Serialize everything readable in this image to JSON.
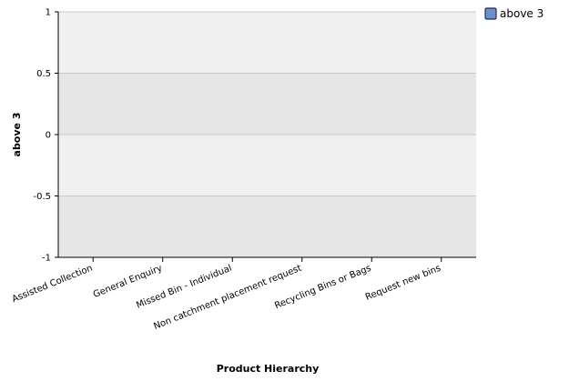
{
  "chart_data": {
    "type": "bar",
    "title": "",
    "xlabel": "Product Hierarchy",
    "ylabel": "above 3",
    "categories": [
      "Assisted Collection",
      "General Enquiry",
      "Missed Bin - Individual",
      "Non catchment placement request",
      "Recycling Bins or Bags",
      "Request new bins"
    ],
    "series": [
      {
        "name": "above 3",
        "values": [
          0,
          0,
          0,
          0,
          0,
          0
        ],
        "color": "#6f8fc9"
      }
    ],
    "ylim": [
      -1,
      1
    ],
    "yticks": [
      "1",
      "0.5",
      "0",
      "-0.5",
      "-1"
    ],
    "grid": true,
    "legend_position": "top-right",
    "colors": {
      "band_light": "#f0f0f0",
      "band_dark": "#e6e6e6",
      "gridline": "#c8c8c8",
      "legend_swatch": "#6f8fc9",
      "legend_swatch_border": "#1f2f55"
    }
  }
}
